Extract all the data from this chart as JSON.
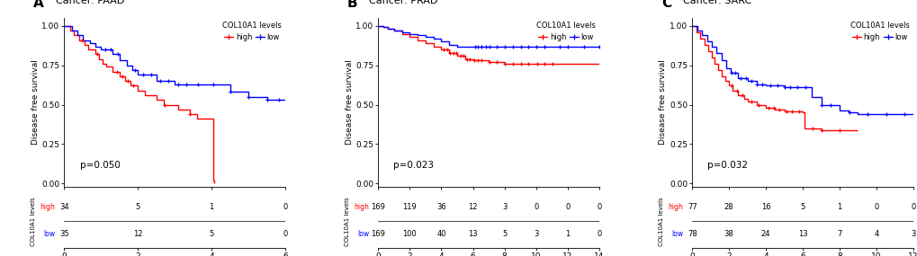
{
  "panels": [
    {
      "label": "A",
      "cancer": "PAAD",
      "pvalue": "p=0.050",
      "xlim": [
        0,
        6
      ],
      "xticks": [
        0,
        2,
        4,
        6
      ],
      "ylim": [
        -0.02,
        1.05
      ],
      "yticks": [
        0.0,
        0.25,
        0.5,
        0.75,
        1.0
      ],
      "high": {
        "times": [
          0,
          0.15,
          0.25,
          0.4,
          0.55,
          0.65,
          0.75,
          0.85,
          0.95,
          1.05,
          1.15,
          1.3,
          1.5,
          1.65,
          1.8,
          2.0,
          2.2,
          2.5,
          2.7,
          2.9,
          3.1,
          3.4,
          3.6,
          3.8,
          4.0,
          4.05,
          4.06
        ],
        "surv": [
          1.0,
          0.97,
          0.94,
          0.91,
          0.88,
          0.85,
          0.85,
          0.82,
          0.79,
          0.76,
          0.74,
          0.71,
          0.68,
          0.65,
          0.62,
          0.59,
          0.56,
          0.53,
          0.5,
          0.5,
          0.47,
          0.44,
          0.41,
          0.41,
          0.41,
          0.02,
          0.0
        ],
        "censors": [
          0.48,
          0.9,
          1.42,
          1.58,
          1.72,
          1.88,
          2.72,
          3.42
        ]
      },
      "low": {
        "times": [
          0,
          0.2,
          0.35,
          0.5,
          0.7,
          0.85,
          1.0,
          1.15,
          1.3,
          1.5,
          1.7,
          1.85,
          2.0,
          2.5,
          3.0,
          3.5,
          4.5,
          5.0,
          5.5,
          6.0
        ],
        "surv": [
          1.0,
          0.97,
          0.94,
          0.91,
          0.89,
          0.87,
          0.85,
          0.85,
          0.82,
          0.78,
          0.75,
          0.72,
          0.69,
          0.65,
          0.63,
          0.63,
          0.58,
          0.55,
          0.53,
          0.53
        ],
        "censors": [
          1.12,
          1.25,
          1.45,
          1.92,
          2.15,
          2.35,
          2.6,
          2.82,
          3.1,
          3.32,
          3.62,
          4.05,
          4.5,
          5.0,
          5.5,
          5.82
        ]
      },
      "at_risk_times": [
        0,
        2,
        4,
        6
      ],
      "at_risk_high": [
        34,
        5,
        1,
        0
      ],
      "at_risk_low": [
        35,
        12,
        5,
        0
      ]
    },
    {
      "label": "B",
      "cancer": "PRAD",
      "pvalue": "p=0.023",
      "xlim": [
        0,
        14
      ],
      "xticks": [
        0,
        2,
        4,
        6,
        8,
        10,
        12,
        14
      ],
      "ylim": [
        -0.02,
        1.05
      ],
      "yticks": [
        0.0,
        0.25,
        0.5,
        0.75,
        1.0
      ],
      "high": {
        "times": [
          0,
          0.3,
          0.6,
          1.0,
          1.5,
          2.0,
          2.5,
          3.0,
          3.5,
          4.0,
          4.5,
          5.0,
          5.5,
          6.0,
          7.0,
          8.0,
          9.0,
          10.0,
          14.0
        ],
        "surv": [
          1.0,
          0.99,
          0.98,
          0.97,
          0.95,
          0.93,
          0.91,
          0.89,
          0.87,
          0.85,
          0.83,
          0.81,
          0.79,
          0.78,
          0.77,
          0.76,
          0.76,
          0.76,
          0.76
        ],
        "censors": [
          4.15,
          4.35,
          4.55,
          4.75,
          4.95,
          5.2,
          5.42,
          5.62,
          5.82,
          6.1,
          6.32,
          6.55,
          7.05,
          7.52,
          8.02,
          8.52,
          9.05,
          9.52,
          10.05,
          10.52,
          11.05
        ]
      },
      "low": {
        "times": [
          0,
          0.3,
          0.6,
          1.0,
          1.5,
          2.0,
          2.5,
          3.0,
          3.5,
          4.0,
          4.5,
          5.0,
          5.5,
          6.0,
          6.5,
          7.0,
          8.0,
          9.0,
          10.0,
          11.0,
          12.0,
          13.0,
          14.0
        ],
        "surv": [
          1.0,
          0.99,
          0.98,
          0.97,
          0.96,
          0.95,
          0.94,
          0.93,
          0.92,
          0.9,
          0.88,
          0.87,
          0.87,
          0.865,
          0.865,
          0.865,
          0.865,
          0.865,
          0.865,
          0.865,
          0.865,
          0.865,
          0.865
        ],
        "censors": [
          6.12,
          6.32,
          6.52,
          6.82,
          7.02,
          7.52,
          8.02,
          8.52,
          9.02,
          9.52,
          10.02,
          10.52,
          11.52,
          12.02,
          13.02,
          14.02
        ]
      },
      "at_risk_times": [
        0,
        2,
        4,
        6,
        8,
        10,
        12,
        14
      ],
      "at_risk_high": [
        169,
        119,
        36,
        12,
        3,
        0,
        0,
        0
      ],
      "at_risk_low": [
        169,
        100,
        40,
        13,
        5,
        3,
        1,
        0
      ]
    },
    {
      "label": "C",
      "cancer": "SARC",
      "pvalue": "p=0.032",
      "xlim": [
        0,
        12
      ],
      "xticks": [
        0,
        2,
        4,
        6,
        8,
        10,
        12
      ],
      "ylim": [
        -0.02,
        1.05
      ],
      "yticks": [
        0.0,
        0.25,
        0.5,
        0.75,
        1.0
      ],
      "high": {
        "times": [
          0,
          0.25,
          0.45,
          0.65,
          0.85,
          1.05,
          1.2,
          1.4,
          1.6,
          1.8,
          2.0,
          2.2,
          2.5,
          2.8,
          3.0,
          3.5,
          4.0,
          4.5,
          5.0,
          5.5,
          6.0,
          6.1,
          7.0,
          8.0,
          9.0
        ],
        "surv": [
          1.0,
          0.96,
          0.92,
          0.88,
          0.84,
          0.8,
          0.76,
          0.72,
          0.68,
          0.65,
          0.62,
          0.59,
          0.56,
          0.54,
          0.52,
          0.5,
          0.48,
          0.47,
          0.46,
          0.455,
          0.45,
          0.35,
          0.34,
          0.34,
          0.34
        ],
        "censors": [
          2.12,
          2.42,
          2.72,
          3.22,
          3.62,
          4.12,
          4.42,
          4.72,
          5.12,
          5.42,
          5.82,
          6.52,
          7.02,
          8.02
        ]
      },
      "low": {
        "times": [
          0,
          0.3,
          0.55,
          0.8,
          1.05,
          1.3,
          1.6,
          1.85,
          2.1,
          2.5,
          3.0,
          3.5,
          4.0,
          4.5,
          5.0,
          5.5,
          6.0,
          6.5,
          7.0,
          7.5,
          8.0,
          8.5,
          9.0,
          9.5,
          10.0,
          11.0,
          12.0
        ],
        "surv": [
          1.0,
          0.97,
          0.94,
          0.9,
          0.87,
          0.83,
          0.78,
          0.73,
          0.7,
          0.67,
          0.65,
          0.63,
          0.62,
          0.62,
          0.61,
          0.61,
          0.61,
          0.55,
          0.5,
          0.5,
          0.465,
          0.45,
          0.44,
          0.44,
          0.44,
          0.44,
          0.44
        ],
        "censors": [
          2.12,
          2.32,
          2.62,
          2.92,
          3.22,
          3.52,
          3.82,
          4.22,
          4.62,
          5.02,
          5.32,
          5.72,
          6.12,
          7.02,
          7.52,
          8.52,
          9.52,
          10.52,
          11.52
        ]
      },
      "at_risk_times": [
        0,
        2,
        4,
        6,
        8,
        10,
        12
      ],
      "at_risk_high": [
        77,
        28,
        16,
        5,
        1,
        0,
        0
      ],
      "at_risk_low": [
        78,
        38,
        24,
        13,
        7,
        4,
        3
      ]
    }
  ],
  "high_color": "#FF0000",
  "low_color": "#0000FF",
  "bg_color": "#FFFFFF"
}
